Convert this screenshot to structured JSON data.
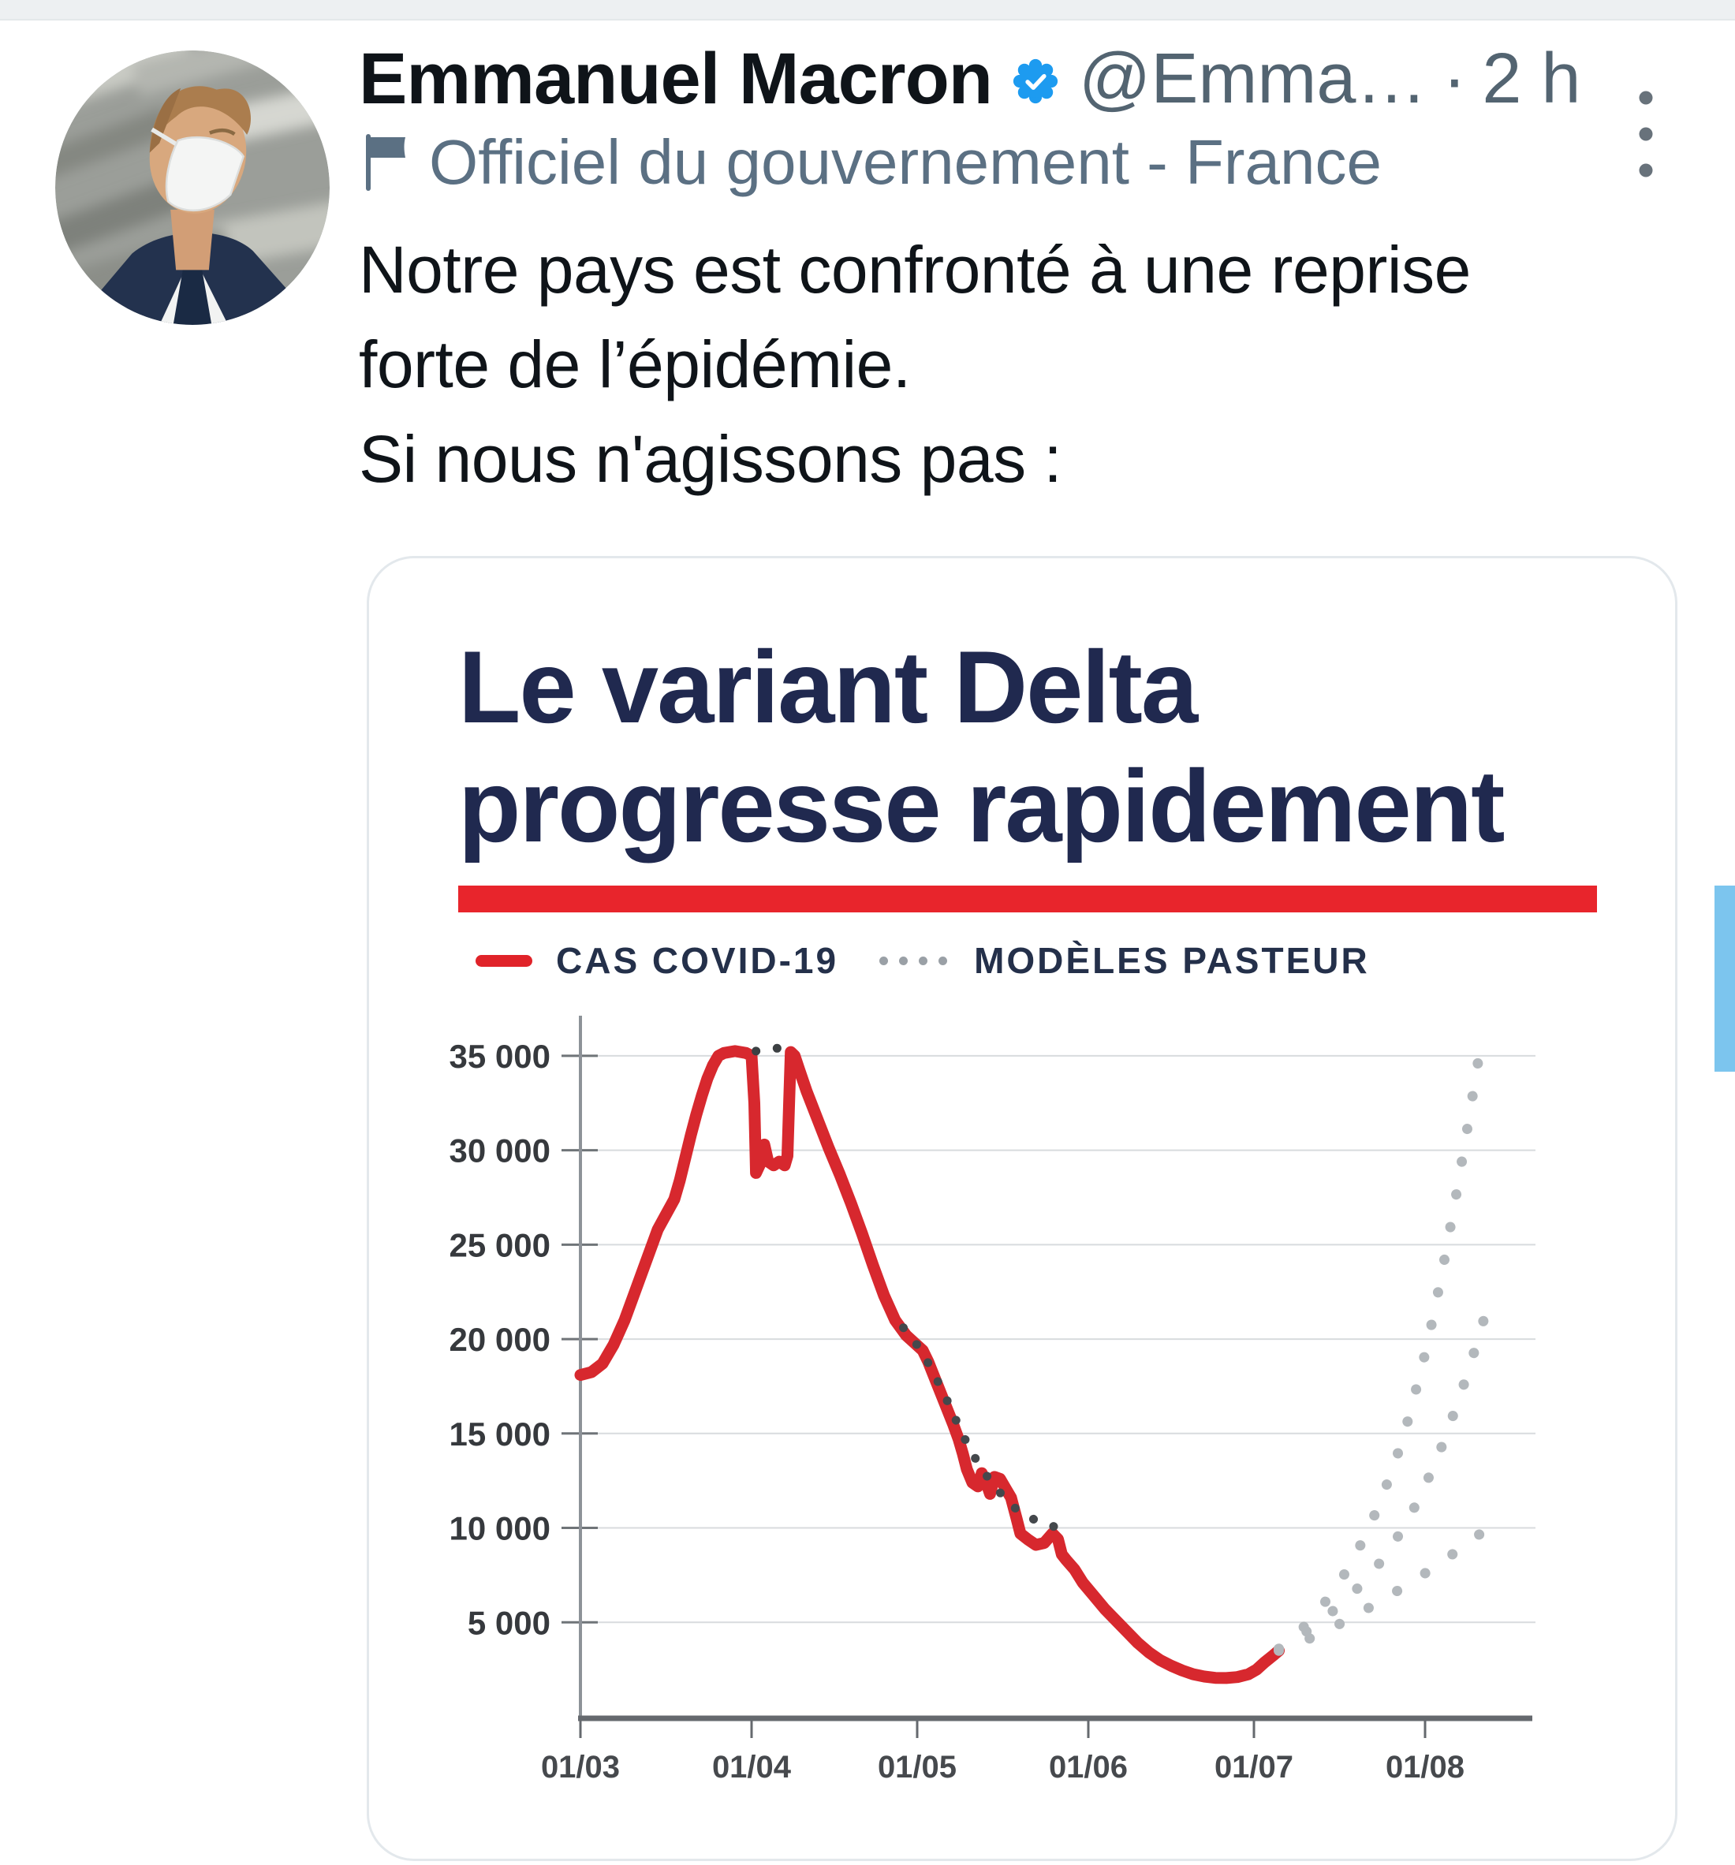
{
  "tweet": {
    "author": {
      "name": "Emmanuel Macron",
      "handle_truncated": "@Emma…",
      "separator": "·",
      "timestamp": "2 h",
      "verified_badge_color": "#1d9bf0",
      "gov_label": "Officiel du gouvernement - France"
    },
    "body_lines": [
      "Notre pays est confronté à une reprise",
      "forte de l’épidémie.",
      "Si nous n'agissons pas :"
    ]
  },
  "card": {
    "title_lines": [
      "Le variant Delta",
      "progresse rapidement"
    ],
    "title_color": "#20294f",
    "accent_bar_color": "#e8252c",
    "legend": [
      {
        "label": "CAS COVID-19",
        "marker": "red-line",
        "color": "#e02329"
      },
      {
        "label": "MODÈLES PASTEUR",
        "marker": "gray-dots",
        "color": "#9aa0a6"
      }
    ]
  },
  "scrollbar_color": "#7cc5ee",
  "chart_data": {
    "type": "line",
    "title": "Le variant Delta progresse rapidement",
    "xlabel": "",
    "ylabel": "",
    "x_unit": "jours depuis le 01/03/2021",
    "xlim_days": [
      0,
      172
    ],
    "ylim": [
      0,
      37000
    ],
    "grid": "horizontal",
    "legend_position": "top",
    "x_ticks": [
      {
        "label": "01/03",
        "day": 0
      },
      {
        "label": "01/04",
        "day": 31
      },
      {
        "label": "01/05",
        "day": 61
      },
      {
        "label": "01/06",
        "day": 92
      },
      {
        "label": "01/07",
        "day": 122
      },
      {
        "label": "01/08",
        "day": 153
      }
    ],
    "y_ticks": [
      {
        "label": "5 000",
        "value": 5000
      },
      {
        "label": "10 000",
        "value": 10000
      },
      {
        "label": "15 000",
        "value": 15000
      },
      {
        "label": "20 000",
        "value": 20000
      },
      {
        "label": "25 000",
        "value": 25000
      },
      {
        "label": "30 000",
        "value": 30000
      },
      {
        "label": "35 000",
        "value": 35000
      }
    ],
    "series": [
      {
        "name": "CAS COVID-19",
        "variant": "observed",
        "color": "#d7282e",
        "points": [
          [
            0,
            18100
          ],
          [
            2,
            18250
          ],
          [
            4,
            18700
          ],
          [
            6,
            19700
          ],
          [
            8,
            21000
          ],
          [
            10,
            22600
          ],
          [
            12,
            24200
          ],
          [
            14,
            25800
          ],
          [
            15.5,
            26600
          ],
          [
            17,
            27400
          ],
          [
            18,
            28400
          ],
          [
            19,
            29600
          ],
          [
            20,
            30800
          ],
          [
            21,
            31900
          ],
          [
            22,
            32900
          ],
          [
            23,
            33800
          ],
          [
            24,
            34500
          ],
          [
            25,
            35000
          ],
          [
            26,
            35150
          ],
          [
            28,
            35250
          ],
          [
            30,
            35150
          ],
          [
            31,
            35000
          ],
          [
            31.5,
            32500
          ],
          [
            31.8,
            28800
          ],
          [
            32.6,
            29300
          ],
          [
            33.3,
            30300
          ],
          [
            34,
            29400
          ],
          [
            35,
            29200
          ],
          [
            36,
            29400
          ],
          [
            37,
            29200
          ],
          [
            37.5,
            29700
          ],
          [
            37.8,
            32500
          ],
          [
            38.1,
            35200
          ],
          [
            38.8,
            35000
          ],
          [
            39.6,
            34300
          ],
          [
            41,
            33100
          ],
          [
            43,
            31600
          ],
          [
            45,
            30100
          ],
          [
            47,
            28700
          ],
          [
            49,
            27200
          ],
          [
            51,
            25600
          ],
          [
            53,
            23900
          ],
          [
            55,
            22300
          ],
          [
            57,
            21000
          ],
          [
            59,
            20200
          ],
          [
            60.5,
            19800
          ],
          [
            62,
            19400
          ],
          [
            63,
            18800
          ],
          [
            64.5,
            17700
          ],
          [
            66,
            16600
          ],
          [
            67.5,
            15500
          ],
          [
            68.5,
            14700
          ],
          [
            69.3,
            13900
          ],
          [
            70,
            13100
          ],
          [
            71,
            12400
          ],
          [
            72,
            12200
          ],
          [
            72.7,
            12900
          ],
          [
            73.5,
            12400
          ],
          [
            74.2,
            11800
          ],
          [
            75,
            12700
          ],
          [
            76,
            12600
          ],
          [
            77,
            12100
          ],
          [
            78,
            11600
          ],
          [
            79,
            10500
          ],
          [
            79.7,
            9700
          ],
          [
            81,
            9400
          ],
          [
            82.5,
            9100
          ],
          [
            84,
            9200
          ],
          [
            85.5,
            9700
          ],
          [
            86.5,
            9400
          ],
          [
            87.2,
            8600
          ],
          [
            88,
            8300
          ],
          [
            89.5,
            7800
          ],
          [
            91,
            7100
          ],
          [
            93,
            6400
          ],
          [
            95,
            5700
          ],
          [
            97,
            5100
          ],
          [
            99,
            4500
          ],
          [
            101,
            3900
          ],
          [
            103,
            3400
          ],
          [
            105,
            3000
          ],
          [
            107,
            2700
          ],
          [
            109,
            2450
          ],
          [
            111,
            2250
          ],
          [
            113,
            2130
          ],
          [
            115,
            2060
          ],
          [
            117,
            2050
          ],
          [
            119,
            2100
          ],
          [
            121,
            2250
          ],
          [
            122.5,
            2500
          ],
          [
            124,
            2900
          ],
          [
            125.5,
            3250
          ],
          [
            126.5,
            3500
          ]
        ]
      },
      {
        "name": "MODÈLES PASTEUR — ajustement pic",
        "variant": "fit",
        "color": "#3c4043",
        "points": [
          [
            31.8,
            35250
          ],
          [
            34,
            35400
          ],
          [
            36,
            35400
          ],
          [
            38,
            35300
          ]
        ]
      },
      {
        "name": "MODÈLES PASTEUR — ajustement décrue",
        "variant": "fit",
        "color": "#44484c",
        "points": [
          [
            58.5,
            20600
          ],
          [
            60.5,
            19900
          ],
          [
            62.5,
            19000
          ],
          [
            64.5,
            17900
          ],
          [
            66.5,
            16700
          ],
          [
            68.5,
            15400
          ],
          [
            70.5,
            14200
          ],
          [
            72.5,
            13200
          ],
          [
            74.5,
            12400
          ],
          [
            76.5,
            11700
          ],
          [
            78.5,
            11100
          ],
          [
            80.5,
            10700
          ],
          [
            82.5,
            10400
          ],
          [
            84.5,
            10200
          ],
          [
            86.5,
            10000
          ],
          [
            88,
            9900
          ]
        ]
      },
      {
        "name": "MODÈLES PASTEUR — projection haute",
        "variant": "projection",
        "color": "#b3b8bc",
        "points": [
          [
            126.5,
            3600
          ],
          [
            129.5,
            4300
          ],
          [
            132.5,
            5200
          ],
          [
            135.5,
            6300
          ],
          [
            138.5,
            7600
          ],
          [
            141.5,
            9200
          ],
          [
            144.5,
            11100
          ],
          [
            147.5,
            13400
          ],
          [
            150,
            15800
          ],
          [
            152.5,
            18600
          ],
          [
            154.5,
            21200
          ],
          [
            156.5,
            24200
          ],
          [
            158.5,
            27400
          ],
          [
            160,
            30000
          ],
          [
            161.3,
            32300
          ],
          [
            162.3,
            34200
          ],
          [
            163,
            35300
          ]
        ]
      },
      {
        "name": "MODÈLES PASTEUR — projection médiane",
        "variant": "projection",
        "color": "#b3b8bc",
        "points": [
          [
            126.5,
            3550
          ],
          [
            130.5,
            4300
          ],
          [
            134.5,
            5150
          ],
          [
            138.5,
            6150
          ],
          [
            142.5,
            7300
          ],
          [
            146,
            8600
          ],
          [
            149.5,
            10200
          ],
          [
            152.5,
            11900
          ],
          [
            155.5,
            13900
          ],
          [
            158,
            15900
          ],
          [
            160.5,
            18000
          ],
          [
            162.5,
            19900
          ],
          [
            164,
            21400
          ]
        ]
      },
      {
        "name": "MODÈLES PASTEUR — projection basse",
        "variant": "projection",
        "color": "#b3b8bc",
        "points": [
          [
            126.5,
            3500
          ],
          [
            131,
            4000
          ],
          [
            135.5,
            4600
          ],
          [
            140,
            5300
          ],
          [
            144.5,
            6050
          ],
          [
            149,
            6850
          ],
          [
            153,
            7600
          ],
          [
            157,
            8400
          ],
          [
            160.5,
            9150
          ],
          [
            163.5,
            9800
          ],
          [
            166,
            10300
          ]
        ]
      }
    ]
  }
}
